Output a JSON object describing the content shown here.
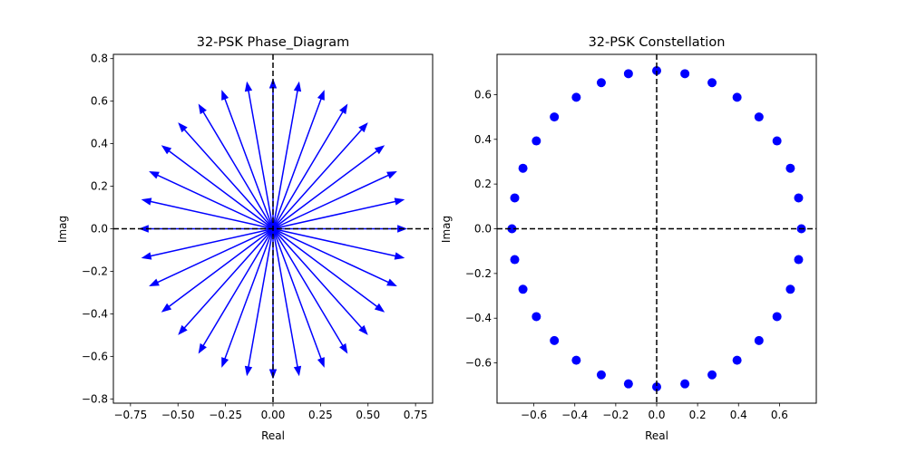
{
  "chart_data": [
    {
      "type": "quiver",
      "title": "32-PSK Phase_Diagram",
      "xlabel": "Real",
      "ylabel": "Imag",
      "xlim": [
        -0.84,
        0.84
      ],
      "ylim": [
        -0.82,
        0.82
      ],
      "xticks": [
        -0.75,
        -0.5,
        -0.25,
        0.0,
        0.25,
        0.5,
        0.75
      ],
      "xtick_labels": [
        "−0.75",
        "−0.50",
        "−0.25",
        "0.00",
        "0.25",
        "0.50",
        "0.75"
      ],
      "yticks": [
        -0.8,
        -0.6,
        -0.4,
        -0.2,
        0.0,
        0.2,
        0.4,
        0.6,
        0.8
      ],
      "ytick_labels": [
        "−0.8",
        "−0.6",
        "−0.4",
        "−0.2",
        "0.0",
        "0.2",
        "0.4",
        "0.6",
        "0.8"
      ],
      "n_points": 32,
      "radius": 0.7071,
      "color": "#0000ff",
      "ref_lines": "dashed black lines at x=0 and y=0"
    },
    {
      "type": "scatter",
      "title": "32-PSK Constellation",
      "xlabel": "Real",
      "ylabel": "Imag",
      "xlim": [
        -0.78,
        0.78
      ],
      "ylim": [
        -0.78,
        0.78
      ],
      "xticks": [
        -0.6,
        -0.4,
        -0.2,
        0.0,
        0.2,
        0.4,
        0.6
      ],
      "xtick_labels": [
        "−0.6",
        "−0.4",
        "−0.2",
        "0.0",
        "0.2",
        "0.4",
        "0.6"
      ],
      "yticks": [
        -0.6,
        -0.4,
        -0.2,
        0.0,
        0.2,
        0.4,
        0.6
      ],
      "ytick_labels": [
        "−0.6",
        "−0.4",
        "−0.2",
        "0.0",
        "0.2",
        "0.4",
        "0.6"
      ],
      "n_points": 32,
      "radius": 0.7071,
      "color": "#0000ff",
      "ref_lines": "dashed black lines at x=0 and y=0"
    }
  ]
}
